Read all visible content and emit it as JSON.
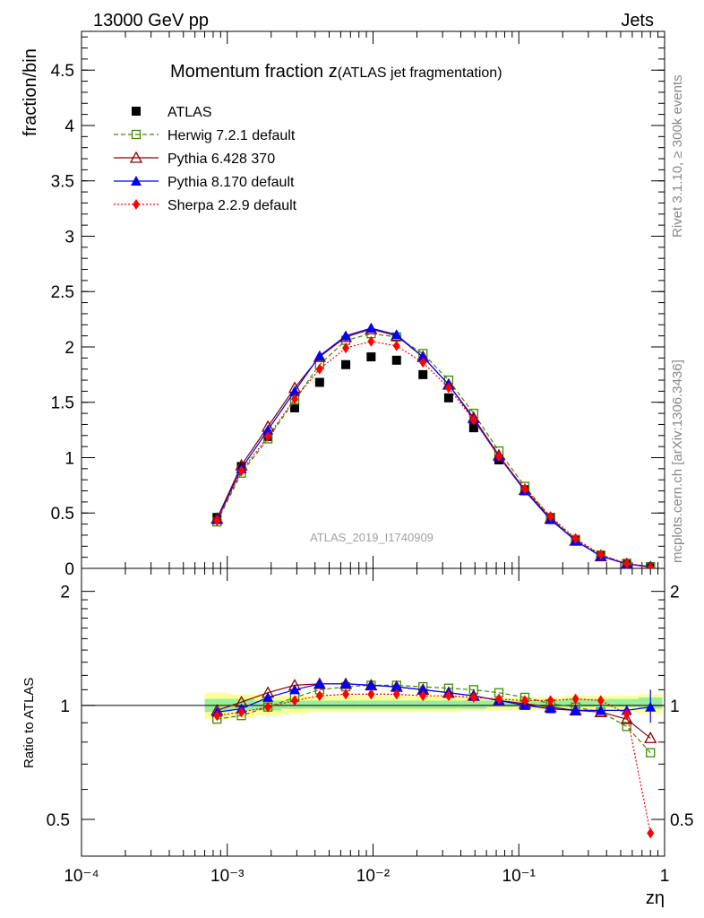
{
  "header": {
    "left": "13000 GeV pp",
    "right": "Jets"
  },
  "side_text": {
    "rivet": "Rivet 3.1.10, ≥ 300k events",
    "mcplots": "mcplots.cern.ch [arXiv:1306.3436]"
  },
  "chart_data": {
    "type": "line",
    "title_main": "Momentum fraction z",
    "title_sub": "(ATLAS jet fragmentation)",
    "analysis_tag": "ATLAS_2019_I1740909",
    "xlabel": "zη",
    "ylabel": "fraction/bin",
    "ratio_ylabel": "Ratio to ATLAS",
    "x_scale": "log",
    "xlim": [
      0.0001,
      1
    ],
    "x_ticks": [
      {
        "v": 0.0001,
        "label": "10⁻⁴"
      },
      {
        "v": 0.001,
        "label": "10⁻³"
      },
      {
        "v": 0.01,
        "label": "10⁻²"
      },
      {
        "v": 0.1,
        "label": "10⁻¹"
      },
      {
        "v": 1,
        "label": "1"
      }
    ],
    "main_ylim": [
      0,
      4.85
    ],
    "main_y_ticks": [
      {
        "v": 0,
        "label": "0"
      },
      {
        "v": 0.5,
        "label": "0.5"
      },
      {
        "v": 1,
        "label": "1"
      },
      {
        "v": 1.5,
        "label": "1.5"
      },
      {
        "v": 2,
        "label": "2"
      },
      {
        "v": 2.5,
        "label": "2.5"
      },
      {
        "v": 3,
        "label": "3"
      },
      {
        "v": 3.5,
        "label": "3.5"
      },
      {
        "v": 4,
        "label": "4"
      },
      {
        "v": 4.5,
        "label": "4.5"
      }
    ],
    "ratio_ylim": [
      0.4,
      2.3
    ],
    "ratio_y_ticks": [
      {
        "v": 0.5,
        "label": "0.5"
      },
      {
        "v": 1,
        "label": "1"
      },
      {
        "v": 2,
        "label": "2"
      }
    ],
    "legend_position": "top-left",
    "x": [
      0.00085,
      0.00125,
      0.0019,
      0.0029,
      0.0043,
      0.0065,
      0.0097,
      0.0145,
      0.022,
      0.033,
      0.049,
      0.073,
      0.11,
      0.165,
      0.245,
      0.365,
      0.55,
      0.8
    ],
    "ratio_band_yellow": {
      "lo": [
        0.92,
        0.93,
        0.94,
        0.95,
        0.96,
        0.96,
        0.96,
        0.96,
        0.96,
        0.96,
        0.97,
        0.97,
        0.97,
        0.97,
        0.97,
        0.97,
        0.96,
        0.95
      ],
      "hi": [
        1.08,
        1.07,
        1.07,
        1.06,
        1.06,
        1.06,
        1.06,
        1.06,
        1.06,
        1.06,
        1.05,
        1.05,
        1.05,
        1.05,
        1.06,
        1.06,
        1.06,
        1.07
      ]
    },
    "ratio_band_green": {
      "lo": [
        0.96,
        0.97,
        0.97,
        0.98,
        0.98,
        0.98,
        0.98,
        0.98,
        0.98,
        0.98,
        0.98,
        0.99,
        0.99,
        0.99,
        0.99,
        0.99,
        0.99,
        0.98
      ],
      "hi": [
        1.04,
        1.04,
        1.03,
        1.03,
        1.03,
        1.03,
        1.03,
        1.03,
        1.03,
        1.03,
        1.03,
        1.03,
        1.03,
        1.03,
        1.04,
        1.04,
        1.04,
        1.05
      ]
    },
    "series": [
      {
        "name": "ATLAS",
        "color": "#000000",
        "marker": "filled-square",
        "line": "none",
        "values": [
          0.46,
          0.92,
          1.19,
          1.45,
          1.68,
          1.84,
          1.91,
          1.88,
          1.75,
          1.54,
          1.27,
          0.98,
          0.71,
          0.46,
          0.26,
          0.12,
          0.045,
          0.015
        ],
        "ratio": [
          1,
          1,
          1,
          1,
          1,
          1,
          1,
          1,
          1,
          1,
          1,
          1,
          1,
          1,
          1,
          1,
          1,
          1
        ]
      },
      {
        "name": "Herwig 7.2.1 default",
        "color": "#3c8c00",
        "marker": "open-square",
        "line": "dashed",
        "values": [
          0.42,
          0.86,
          1.17,
          1.52,
          1.84,
          2.06,
          2.12,
          2.09,
          1.94,
          1.7,
          1.4,
          1.06,
          0.74,
          0.46,
          0.26,
          0.12,
          0.04,
          0.011
        ],
        "ratio": [
          0.92,
          0.94,
          0.99,
          1.05,
          1.1,
          1.12,
          1.13,
          1.13,
          1.12,
          1.11,
          1.1,
          1.08,
          1.05,
          1.01,
          0.99,
          0.96,
          0.88,
          0.75
        ]
      },
      {
        "name": "Pythia 6.428 370",
        "color": "#8b0000",
        "marker": "open-triangle",
        "line": "solid",
        "values": [
          0.45,
          0.93,
          1.28,
          1.63,
          1.91,
          2.09,
          2.16,
          2.1,
          1.91,
          1.66,
          1.36,
          1.02,
          0.71,
          0.45,
          0.25,
          0.11,
          0.04,
          0.012
        ],
        "ratio": [
          0.97,
          1.02,
          1.08,
          1.13,
          1.14,
          1.14,
          1.13,
          1.12,
          1.1,
          1.08,
          1.06,
          1.03,
          1.01,
          0.99,
          0.97,
          0.96,
          0.92,
          0.82
        ]
      },
      {
        "name": "Pythia 8.170 default",
        "color": "#0000ff",
        "marker": "filled-triangle",
        "line": "solid",
        "values": [
          0.44,
          0.9,
          1.25,
          1.6,
          1.92,
          2.1,
          2.17,
          2.11,
          1.91,
          1.66,
          1.35,
          1.01,
          0.7,
          0.44,
          0.25,
          0.11,
          0.042,
          0.015
        ],
        "ratio": [
          0.96,
          0.98,
          1.05,
          1.1,
          1.14,
          1.14,
          1.13,
          1.12,
          1.1,
          1.08,
          1.06,
          1.03,
          1.0,
          0.98,
          0.97,
          0.97,
          0.97,
          0.99
        ]
      },
      {
        "name": "Sherpa 2.2.9 default",
        "color": "#ff0000",
        "marker": "filled-diamond",
        "line": "dotted",
        "values": [
          0.43,
          0.88,
          1.19,
          1.53,
          1.8,
          1.99,
          2.05,
          2.01,
          1.86,
          1.63,
          1.34,
          1.01,
          0.72,
          0.47,
          0.27,
          0.125,
          0.043,
          0.007
        ],
        "ratio": [
          0.94,
          0.96,
          0.99,
          1.03,
          1.06,
          1.07,
          1.07,
          1.07,
          1.06,
          1.06,
          1.05,
          1.04,
          1.03,
          1.03,
          1.04,
          1.03,
          0.95,
          0.46
        ]
      }
    ]
  }
}
